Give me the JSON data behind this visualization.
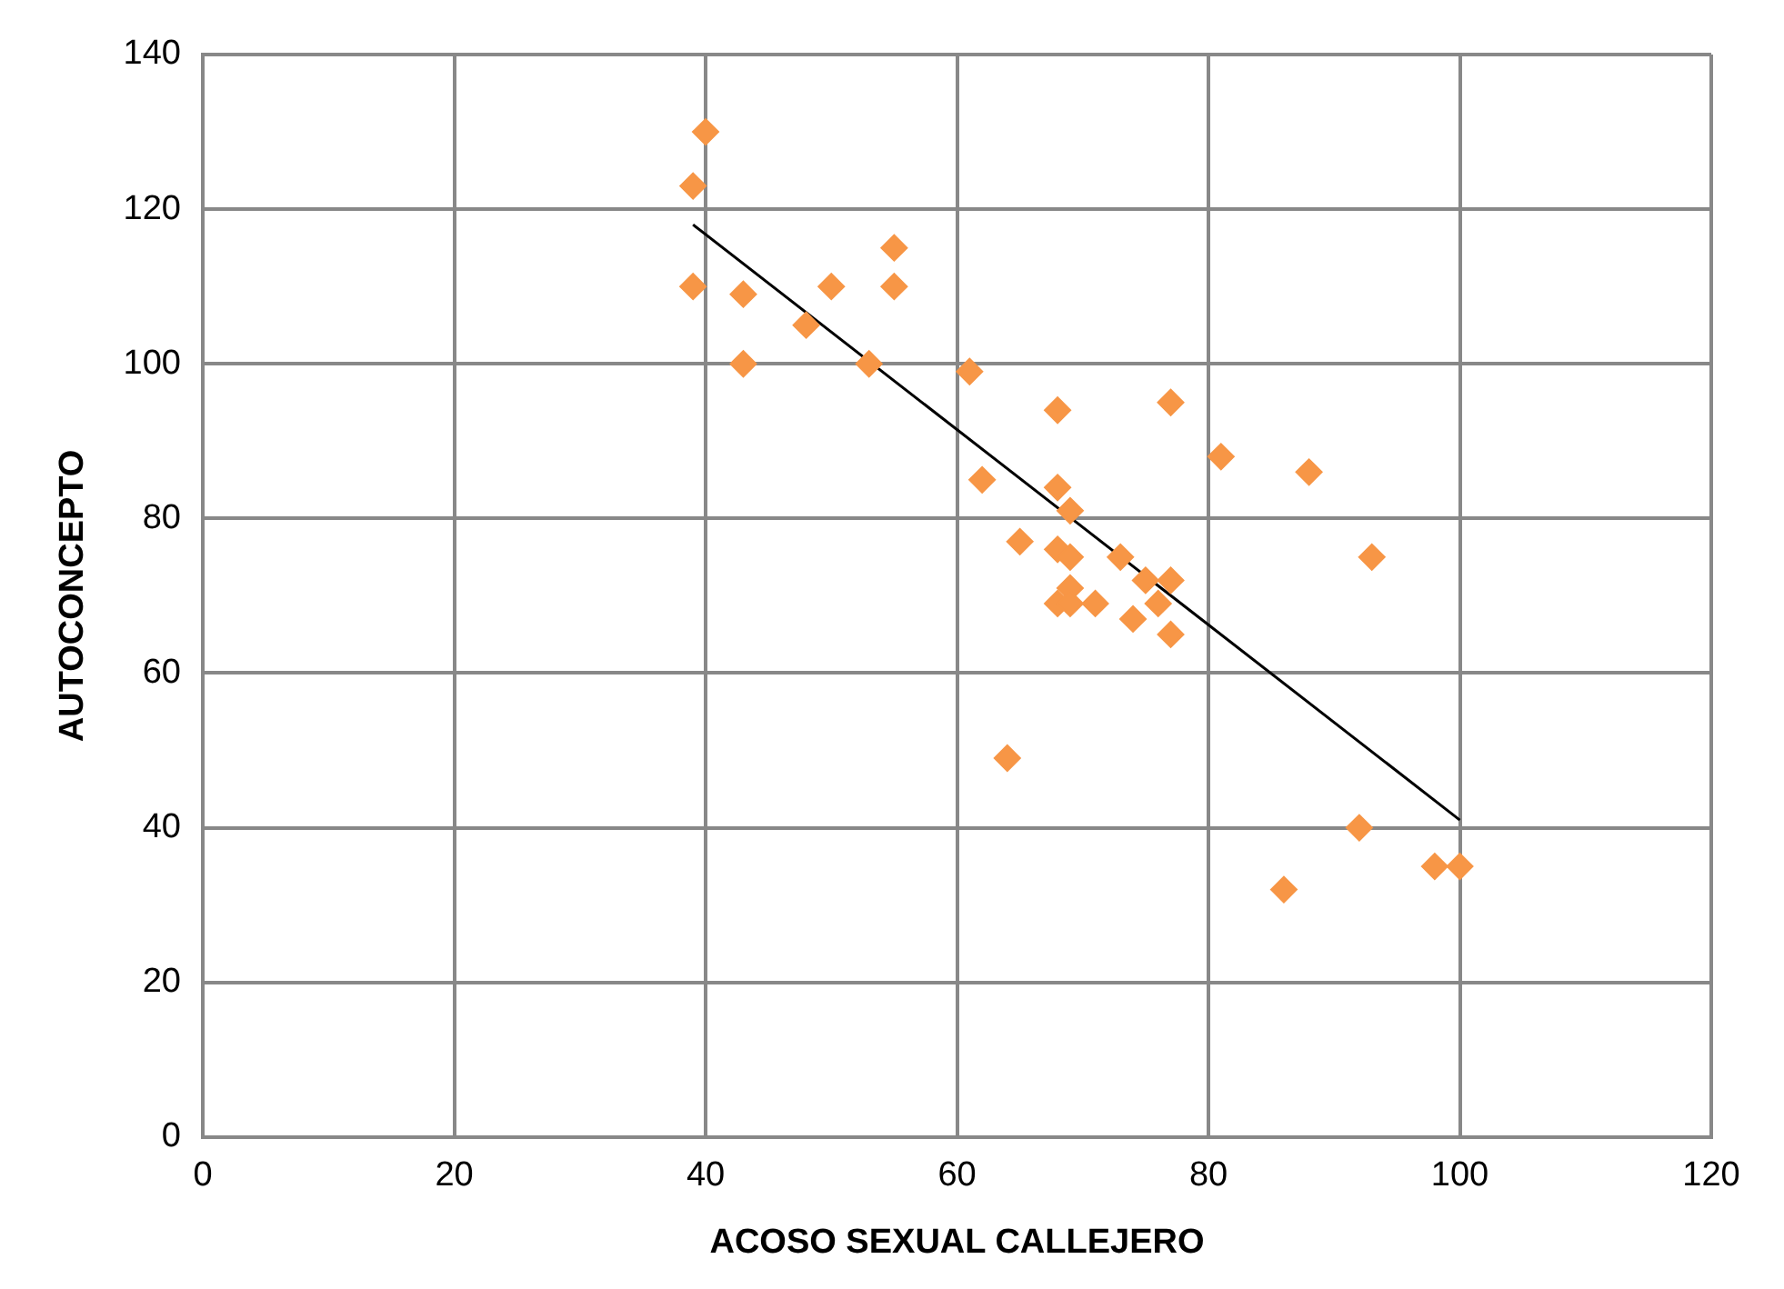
{
  "chart_data": {
    "type": "scatter",
    "xlabel": "ACOSO SEXUAL CALLEJERO",
    "ylabel": "AUTOCONCEPTO",
    "xlim": [
      0,
      120
    ],
    "xticks": [
      0,
      20,
      40,
      60,
      80,
      100,
      120
    ],
    "ylim": [
      0,
      140
    ],
    "yticks": [
      0,
      20,
      40,
      60,
      80,
      100,
      120,
      140
    ],
    "grid": true,
    "legend": false,
    "marker": "diamond",
    "series": [
      {
        "color": "#f79646",
        "x": [
          39,
          40,
          39,
          43,
          43,
          48,
          50,
          53,
          55,
          55,
          61,
          62,
          64,
          65,
          68,
          68,
          69,
          68,
          69,
          69,
          68,
          69,
          71,
          73,
          74,
          75,
          76,
          77,
          77,
          77,
          81,
          88,
          93,
          86,
          92,
          98,
          100
        ],
        "values": [
          123,
          130,
          110,
          109,
          100,
          105,
          110,
          100,
          115,
          110,
          99,
          85,
          49,
          77,
          94,
          84,
          81,
          76,
          75,
          71,
          69,
          69,
          69,
          75,
          67,
          72,
          69,
          72,
          65,
          95,
          88,
          86,
          75,
          32,
          40,
          35,
          35
        ]
      },
      {
        "type": "line",
        "color": "#000000",
        "marker": "none",
        "x": [
          39,
          100
        ],
        "values": [
          118,
          41
        ]
      }
    ]
  }
}
